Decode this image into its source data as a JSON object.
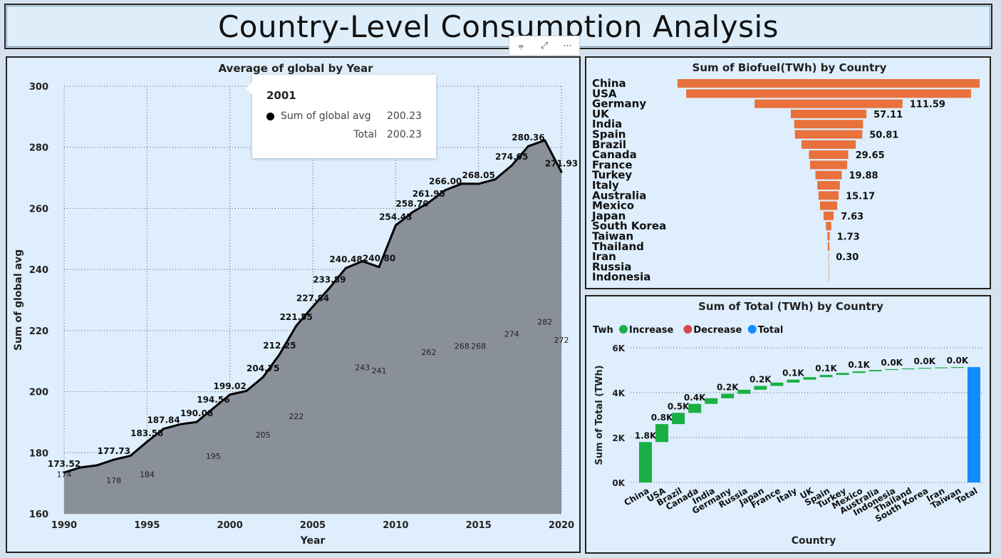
{
  "page_title": "Country-Level Consumption Analysis",
  "toolbar": {
    "filter_icon": "filter-icon",
    "focus_icon": "focus-mode-icon",
    "more_icon": "more-options-icon",
    "filter_glyph": "⩦",
    "focus_glyph": "⤢",
    "more_glyph": "⋯"
  },
  "tooltip": {
    "year": "2001",
    "row1_label": "Sum of global avg",
    "row1_value": "200.23",
    "row2_label": "Total",
    "row2_value": "200.23"
  },
  "chart_data": [
    {
      "type": "area",
      "title": "Average of global by Year",
      "xlabel": "Year",
      "ylabel": "Sum of global avg",
      "xlim": [
        1990,
        2020
      ],
      "ylim": [
        160,
        300
      ],
      "x_ticks": [
        "1990",
        "1995",
        "2000",
        "2005",
        "2010",
        "2015",
        "2020"
      ],
      "y_ticks": [
        "160",
        "180",
        "200",
        "220",
        "240",
        "260",
        "280",
        "300"
      ],
      "grid": true,
      "color": "#8a9099",
      "x": [
        1990,
        1991,
        1992,
        1993,
        1994,
        1995,
        1996,
        1997,
        1998,
        1999,
        2000,
        2001,
        2002,
        2003,
        2004,
        2005,
        2006,
        2007,
        2008,
        2009,
        2010,
        2011,
        2012,
        2013,
        2014,
        2015,
        2016,
        2017,
        2018,
        2019,
        2020
      ],
      "values": [
        173.52,
        175.2,
        175.9,
        177.73,
        179.0,
        183.58,
        187.84,
        189.3,
        190.08,
        194.56,
        199.02,
        200.23,
        204.75,
        212.25,
        221.55,
        227.84,
        233.89,
        240.48,
        242.7,
        240.8,
        254.43,
        258.7,
        261.95,
        266.0,
        268.1,
        268.05,
        269.5,
        274.05,
        280.36,
        282.3,
        271.93
      ],
      "data_labels": [
        {
          "x": 1990,
          "text": "173.52"
        },
        {
          "x": 1993,
          "text": "177.73"
        },
        {
          "x": 1995,
          "text": "183.58"
        },
        {
          "x": 1996,
          "text": "187.84"
        },
        {
          "x": 1998,
          "text": "190.08"
        },
        {
          "x": 1999,
          "text": "194.56"
        },
        {
          "x": 2000,
          "text": "199.02"
        },
        {
          "x": 2002,
          "text": "204.75"
        },
        {
          "x": 2003,
          "text": "212.25"
        },
        {
          "x": 2004,
          "text": "221.55"
        },
        {
          "x": 2005,
          "text": "227.84"
        },
        {
          "x": 2006,
          "text": "233.89"
        },
        {
          "x": 2007,
          "text": "240.48"
        },
        {
          "x": 2009,
          "text": "240.80"
        },
        {
          "x": 2010,
          "text": "254.43"
        },
        {
          "x": 2011,
          "text": "258.70"
        },
        {
          "x": 2012,
          "text": "261.95"
        },
        {
          "x": 2013,
          "text": "266.00"
        },
        {
          "x": 2015,
          "text": "268.05"
        },
        {
          "x": 2017,
          "text": "274.05"
        },
        {
          "x": 2018,
          "text": "280.36"
        },
        {
          "x": 2020,
          "text": "271.93"
        }
      ],
      "inner_labels": [
        {
          "x": 1990,
          "v": 172,
          "text": "174"
        },
        {
          "x": 1993,
          "v": 170,
          "text": "178"
        },
        {
          "x": 1995,
          "v": 172,
          "text": "184"
        },
        {
          "x": 1999,
          "v": 178,
          "text": "195"
        },
        {
          "x": 2002,
          "v": 185,
          "text": "205"
        },
        {
          "x": 2004,
          "v": 191,
          "text": "222"
        },
        {
          "x": 2008,
          "v": 207,
          "text": "243"
        },
        {
          "x": 2009,
          "v": 206,
          "text": "241"
        },
        {
          "x": 2012,
          "v": 212,
          "text": "262"
        },
        {
          "x": 2014,
          "v": 214,
          "text": "268"
        },
        {
          "x": 2015,
          "v": 214,
          "text": "268"
        },
        {
          "x": 2017,
          "v": 218,
          "text": "274"
        },
        {
          "x": 2019,
          "v": 222,
          "text": "282"
        },
        {
          "x": 2020,
          "v": 216,
          "text": "272"
        }
      ]
    },
    {
      "type": "bar",
      "title": "Sum of Biofuel(TWh) by Country",
      "color": "#e8713c",
      "categories": [
        "China",
        "USA",
        "Germany",
        "UK",
        "India",
        "Spain",
        "Brazil",
        "Canada",
        "France",
        "Turkey",
        "Italy",
        "Australia",
        "Mexico",
        "Japan",
        "South Korea",
        "Taiwan",
        "Thailand",
        "Iran",
        "Russia",
        "Indonesia"
      ],
      "values": [
        228,
        215,
        111.59,
        57.11,
        52,
        50.81,
        41,
        29.65,
        28,
        19.88,
        17,
        15.17,
        13,
        7.63,
        4,
        1.73,
        1.2,
        0.3,
        0.1,
        0.05
      ],
      "data_labels": [
        null,
        null,
        "111.59",
        "57.11",
        null,
        "50.81",
        null,
        "29.65",
        null,
        "19.88",
        null,
        "15.17",
        null,
        "7.63",
        null,
        "1.73",
        null,
        "0.30",
        null,
        null
      ]
    },
    {
      "type": "waterfall",
      "title": "Sum of Total (TWh) by Country",
      "xlabel": "Country",
      "ylabel": "Sum of Total (TWh)",
      "ylim": [
        0,
        6000
      ],
      "y_ticks": [
        "0K",
        "2K",
        "4K",
        "6K"
      ],
      "legend": {
        "title": "Twh",
        "items": [
          {
            "name": "Increase",
            "color": "#1aaf45"
          },
          {
            "name": "Decrease",
            "color": "#d64550"
          },
          {
            "name": "Total",
            "color": "#118dff"
          }
        ]
      },
      "categories": [
        "China",
        "USA",
        "Brazil",
        "Canada",
        "India",
        "Germany",
        "Russia",
        "Japan",
        "France",
        "Italy",
        "UK",
        "Spain",
        "Turkey",
        "Mexico",
        "Australia",
        "Indonesia",
        "Thailand",
        "South Korea",
        "Iran",
        "Taiwan",
        "Total"
      ],
      "values": [
        1800,
        800,
        500,
        400,
        250,
        200,
        180,
        170,
        150,
        130,
        110,
        100,
        90,
        70,
        60,
        40,
        30,
        25,
        20,
        15,
        5140
      ],
      "data_labels": [
        "1.8K",
        "0.8K",
        "0.5K",
        "0.4K",
        null,
        "0.2K",
        null,
        "0.2K",
        null,
        "0.1K",
        null,
        "0.1K",
        null,
        "0.1K",
        null,
        "0.0K",
        null,
        "0.0K",
        null,
        "0.0K",
        null
      ]
    }
  ]
}
